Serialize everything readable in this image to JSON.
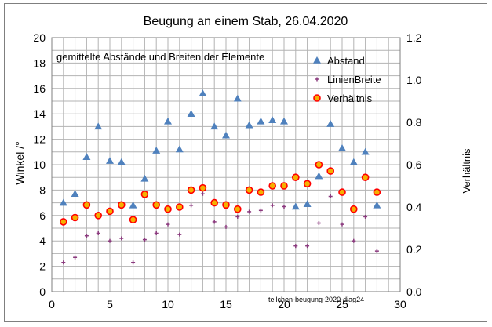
{
  "chart_data": {
    "type": "scatter",
    "title": "Beugung an einem Stab, 26.04.2020",
    "subtitle": "gemittelte Abstände und Breiten der Elemente",
    "footnote": "teilchen-beugung-2020-diag24",
    "xlabel": "",
    "ylabel": "Winkel /°",
    "y2label": "Verhältnis",
    "xlim": [
      0,
      30
    ],
    "ylim": [
      0,
      20
    ],
    "y2lim": [
      0.0,
      1.2
    ],
    "x_ticks": [
      "0",
      "5",
      "10",
      "15",
      "20",
      "25",
      "30"
    ],
    "y_ticks": [
      "0",
      "2",
      "4",
      "6",
      "8",
      "10",
      "12",
      "14",
      "16",
      "18",
      "20"
    ],
    "y2_ticks": [
      "0.0",
      "0.2",
      "0.4",
      "0.6",
      "0.8",
      "1.0",
      "1.2"
    ],
    "grid": true,
    "legend_position": "top-right",
    "series": [
      {
        "name": "Abstand",
        "axis": "left",
        "marker": "triangle",
        "color": "#4f81bd",
        "x": [
          1,
          2,
          3,
          4,
          5,
          6,
          7,
          8,
          9,
          10,
          11,
          12,
          13,
          14,
          15,
          16,
          17,
          18,
          19,
          20,
          21,
          22,
          23,
          24,
          25,
          26,
          27,
          28
        ],
        "y": [
          7.0,
          7.7,
          10.6,
          13.0,
          10.3,
          10.2,
          6.8,
          8.9,
          11.1,
          13.4,
          11.2,
          14.0,
          15.6,
          13.0,
          12.3,
          15.2,
          13.1,
          13.4,
          13.5,
          13.4,
          6.7,
          6.9,
          9.1,
          13.2,
          11.3,
          10.2,
          11.0,
          6.8
        ]
      },
      {
        "name": "LinienBreite",
        "axis": "left",
        "marker": "plus",
        "color": "#8b3a7e",
        "x": [
          1,
          2,
          3,
          4,
          5,
          6,
          7,
          8,
          9,
          10,
          11,
          12,
          13,
          14,
          15,
          16,
          17,
          18,
          19,
          20,
          21,
          22,
          23,
          24,
          25,
          26,
          27,
          28
        ],
        "y": [
          2.3,
          2.7,
          4.4,
          4.6,
          4.0,
          4.2,
          2.3,
          4.1,
          4.6,
          5.3,
          4.5,
          6.8,
          7.7,
          5.5,
          5.1,
          5.9,
          6.3,
          6.4,
          6.8,
          6.7,
          3.6,
          3.6,
          5.4,
          7.5,
          5.3,
          4.0,
          5.9,
          3.2
        ]
      },
      {
        "name": "Verhältnis",
        "axis": "right",
        "marker": "circle",
        "color": "#ff0000",
        "fill": "#f5b000",
        "x": [
          1,
          2,
          3,
          4,
          5,
          6,
          7,
          8,
          9,
          10,
          11,
          12,
          13,
          14,
          15,
          16,
          17,
          18,
          19,
          20,
          21,
          22,
          23,
          24,
          25,
          26,
          27,
          28
        ],
        "y": [
          0.33,
          0.35,
          0.41,
          0.36,
          0.38,
          0.41,
          0.34,
          0.46,
          0.41,
          0.39,
          0.4,
          0.48,
          0.49,
          0.42,
          0.41,
          0.39,
          0.48,
          0.47,
          0.5,
          0.5,
          0.54,
          0.51,
          0.6,
          0.57,
          0.47,
          0.39,
          0.54,
          0.47
        ]
      }
    ]
  }
}
